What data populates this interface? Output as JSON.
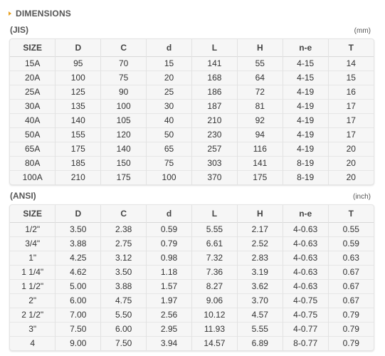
{
  "title": "DIMENSIONS",
  "colors": {
    "accent": "#e8a020"
  },
  "jis": {
    "label": "(JIS)",
    "unit": "(mm)",
    "headers": [
      "SIZE",
      "D",
      "C",
      "d",
      "L",
      "H",
      "n-e",
      "T"
    ],
    "rows": [
      [
        "15A",
        "95",
        "70",
        "15",
        "141",
        "55",
        "4-15",
        "14"
      ],
      [
        "20A",
        "100",
        "75",
        "20",
        "168",
        "64",
        "4-15",
        "15"
      ],
      [
        "25A",
        "125",
        "90",
        "25",
        "186",
        "72",
        "4-19",
        "16"
      ],
      [
        "30A",
        "135",
        "100",
        "30",
        "187",
        "81",
        "4-19",
        "17"
      ],
      [
        "40A",
        "140",
        "105",
        "40",
        "210",
        "92",
        "4-19",
        "17"
      ],
      [
        "50A",
        "155",
        "120",
        "50",
        "230",
        "94",
        "4-19",
        "17"
      ],
      [
        "65A",
        "175",
        "140",
        "65",
        "257",
        "116",
        "4-19",
        "20"
      ],
      [
        "80A",
        "185",
        "150",
        "75",
        "303",
        "141",
        "8-19",
        "20"
      ],
      [
        "100A",
        "210",
        "175",
        "100",
        "370",
        "175",
        "8-19",
        "20"
      ]
    ]
  },
  "ansi": {
    "label": "(ANSI)",
    "unit": "(inch)",
    "headers": [
      "SIZE",
      "D",
      "C",
      "d",
      "L",
      "H",
      "n-e",
      "T"
    ],
    "rows": [
      [
        "1/2\"",
        "3.50",
        "2.38",
        "0.59",
        "5.55",
        "2.17",
        "4-0.63",
        "0.55"
      ],
      [
        "3/4\"",
        "3.88",
        "2.75",
        "0.79",
        "6.61",
        "2.52",
        "4-0.63",
        "0.59"
      ],
      [
        "1\"",
        "4.25",
        "3.12",
        "0.98",
        "7.32",
        "2.83",
        "4-0.63",
        "0.63"
      ],
      [
        "1 1/4\"",
        "4.62",
        "3.50",
        "1.18",
        "7.36",
        "3.19",
        "4-0.63",
        "0.67"
      ],
      [
        "1 1/2\"",
        "5.00",
        "3.88",
        "1.57",
        "8.27",
        "3.62",
        "4-0.63",
        "0.67"
      ],
      [
        "2\"",
        "6.00",
        "4.75",
        "1.97",
        "9.06",
        "3.70",
        "4-0.75",
        "0.67"
      ],
      [
        "2 1/2\"",
        "7.00",
        "5.50",
        "2.56",
        "10.12",
        "4.57",
        "4-0.75",
        "0.79"
      ],
      [
        "3\"",
        "7.50",
        "6.00",
        "2.95",
        "11.93",
        "5.55",
        "4-0.77",
        "0.79"
      ],
      [
        "4",
        "9.00",
        "7.50",
        "3.94",
        "14.57",
        "6.89",
        "8-0.77",
        "0.79"
      ]
    ]
  }
}
